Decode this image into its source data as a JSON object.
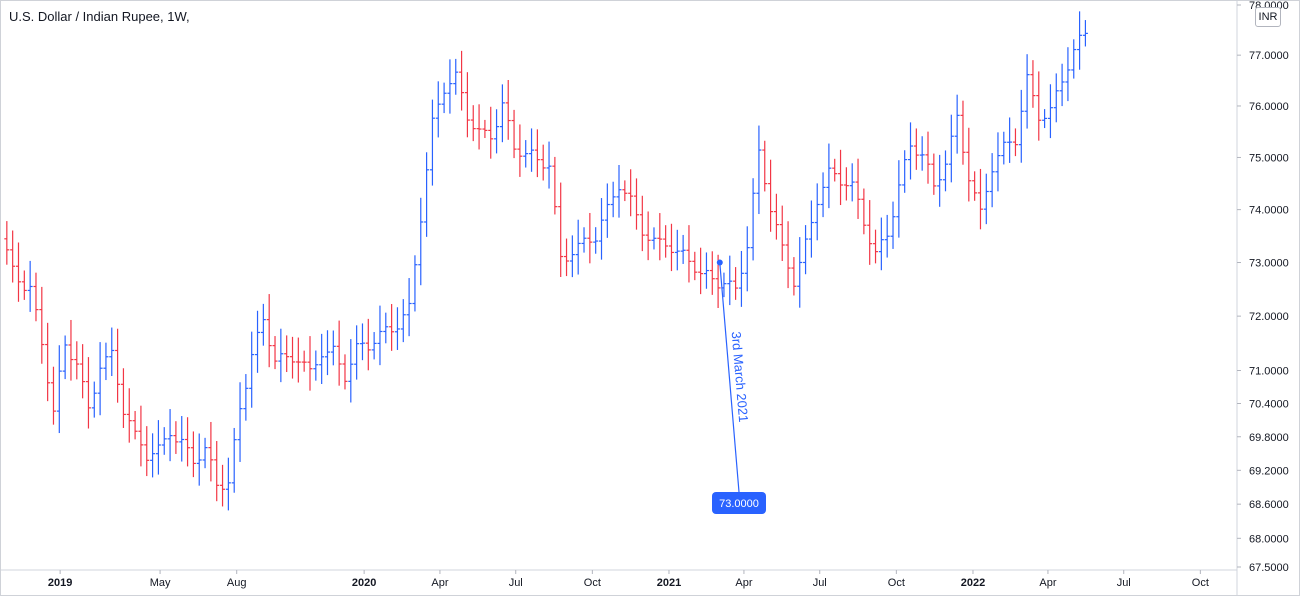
{
  "title": "U.S. Dollar / Indian Rupee, 1W,",
  "currency": "INR",
  "annotation": {
    "text": "3rd March 2021",
    "value_label": "73.0000",
    "point": {
      "x": "2021-03-03",
      "y": 73.0
    }
  },
  "colors": {
    "up": "#2962ff",
    "down": "#f23645",
    "annotation": "#2962ff"
  },
  "chart_data": {
    "type": "ohlc",
    "title": "U.S. Dollar / Indian Rupee, 1W,",
    "y_axis": {
      "scale": "log",
      "range": [
        67.5,
        78.0
      ],
      "ticks": [
        "78.0000",
        "77.0000",
        "76.0000",
        "75.0000",
        "74.0000",
        "73.0000",
        "72.0000",
        "71.0000",
        "70.4000",
        "69.8000",
        "69.2000",
        "68.6000",
        "68.0000",
        "67.5000"
      ]
    },
    "x_axis": {
      "range": [
        "2018-10-22",
        "2022-11-14"
      ],
      "ticks": [
        {
          "label": "2019",
          "date": "2019-01-01",
          "bold": true
        },
        {
          "label": "May",
          "date": "2019-05-01"
        },
        {
          "label": "Aug",
          "date": "2019-08-01"
        },
        {
          "label": "2020",
          "date": "2020-01-01",
          "bold": true
        },
        {
          "label": "Apr",
          "date": "2020-04-01"
        },
        {
          "label": "Jul",
          "date": "2020-07-01"
        },
        {
          "label": "Oct",
          "date": "2020-10-01"
        },
        {
          "label": "2021",
          "date": "2021-01-01",
          "bold": true
        },
        {
          "label": "Apr",
          "date": "2021-04-01"
        },
        {
          "label": "Jul",
          "date": "2021-07-01"
        },
        {
          "label": "Oct",
          "date": "2021-10-01"
        },
        {
          "label": "2022",
          "date": "2022-01-01",
          "bold": true
        },
        {
          "label": "Apr",
          "date": "2022-04-01"
        },
        {
          "label": "Jul",
          "date": "2022-07-01"
        },
        {
          "label": "Oct",
          "date": "2022-10-01"
        }
      ]
    },
    "close_anchors": [
      [
        "2018-10-22",
        73.6
      ],
      [
        "2018-11-05",
        73.0
      ],
      [
        "2018-11-26",
        72.6
      ],
      [
        "2018-12-10",
        71.4
      ],
      [
        "2018-12-24",
        70.1
      ],
      [
        "2019-01-07",
        71.3
      ],
      [
        "2019-01-21",
        71.2
      ],
      [
        "2019-02-04",
        70.4
      ],
      [
        "2019-02-18",
        71.3
      ],
      [
        "2019-03-04",
        71.3
      ],
      [
        "2019-03-18",
        70.2
      ],
      [
        "2019-04-01",
        69.6
      ],
      [
        "2019-04-15",
        69.4
      ],
      [
        "2019-04-29",
        69.6
      ],
      [
        "2019-05-13",
        70.1
      ],
      [
        "2019-05-27",
        69.8
      ],
      [
        "2019-06-10",
        69.4
      ],
      [
        "2019-06-24",
        69.4
      ],
      [
        "2019-07-08",
        68.8
      ],
      [
        "2019-07-22",
        68.9
      ],
      [
        "2019-08-05",
        70.4
      ],
      [
        "2019-08-19",
        71.5
      ],
      [
        "2019-09-02",
        72.0
      ],
      [
        "2019-09-16",
        71.2
      ],
      [
        "2019-09-30",
        71.0
      ],
      [
        "2019-10-14",
        71.1
      ],
      [
        "2019-10-28",
        70.9
      ],
      [
        "2019-11-11",
        71.5
      ],
      [
        "2019-11-25",
        71.5
      ],
      [
        "2019-12-09",
        71.0
      ],
      [
        "2019-12-23",
        71.3
      ],
      [
        "2020-01-06",
        71.3
      ],
      [
        "2020-01-20",
        71.5
      ],
      [
        "2020-02-03",
        71.8
      ],
      [
        "2020-02-24",
        72.3
      ],
      [
        "2020-03-09",
        74.0
      ],
      [
        "2020-03-23",
        75.6
      ],
      [
        "2020-04-06",
        76.2
      ],
      [
        "2020-04-20",
        76.4
      ],
      [
        "2020-05-04",
        75.8
      ],
      [
        "2020-05-18",
        75.6
      ],
      [
        "2020-06-01",
        75.6
      ],
      [
        "2020-06-15",
        76.1
      ],
      [
        "2020-06-29",
        75.1
      ],
      [
        "2020-07-13",
        74.9
      ],
      [
        "2020-07-27",
        74.8
      ],
      [
        "2020-08-10",
        74.9
      ],
      [
        "2020-08-24",
        73.2
      ],
      [
        "2020-09-07",
        73.4
      ],
      [
        "2020-09-21",
        73.4
      ],
      [
        "2020-10-05",
        73.4
      ],
      [
        "2020-10-19",
        73.8
      ],
      [
        "2020-11-02",
        74.4
      ],
      [
        "2020-11-16",
        74.2
      ],
      [
        "2020-11-30",
        73.8
      ],
      [
        "2020-12-14",
        73.5
      ],
      [
        "2020-12-28",
        73.4
      ],
      [
        "2021-01-11",
        73.0
      ],
      [
        "2021-01-25",
        72.9
      ],
      [
        "2021-02-08",
        72.7
      ],
      [
        "2021-02-22",
        72.8
      ],
      [
        "2021-03-08",
        72.8
      ],
      [
        "2021-03-22",
        72.6
      ],
      [
        "2021-04-05",
        73.3
      ],
      [
        "2021-04-19",
        74.9
      ],
      [
        "2021-05-03",
        73.9
      ],
      [
        "2021-05-17",
        73.2
      ],
      [
        "2021-05-31",
        72.8
      ],
      [
        "2021-06-14",
        73.5
      ],
      [
        "2021-06-28",
        74.3
      ],
      [
        "2021-07-12",
        74.6
      ],
      [
        "2021-07-26",
        74.4
      ],
      [
        "2021-08-09",
        74.3
      ],
      [
        "2021-08-23",
        73.8
      ],
      [
        "2021-09-06",
        73.3
      ],
      [
        "2021-09-20",
        73.7
      ],
      [
        "2021-10-04",
        74.5
      ],
      [
        "2021-10-18",
        75.1
      ],
      [
        "2021-11-01",
        74.9
      ],
      [
        "2021-11-15",
        74.3
      ],
      [
        "2021-11-29",
        75.0
      ],
      [
        "2021-12-13",
        75.9
      ],
      [
        "2021-12-27",
        74.8
      ],
      [
        "2022-01-10",
        73.9
      ],
      [
        "2022-01-24",
        74.7
      ],
      [
        "2022-02-07",
        75.0
      ],
      [
        "2022-02-21",
        75.3
      ],
      [
        "2022-03-07",
        76.6
      ],
      [
        "2022-03-21",
        76.0
      ],
      [
        "2022-04-04",
        76.0
      ],
      [
        "2022-04-18",
        76.5
      ],
      [
        "2022-05-02",
        76.9
      ],
      [
        "2022-05-16",
        77.3
      ]
    ]
  }
}
